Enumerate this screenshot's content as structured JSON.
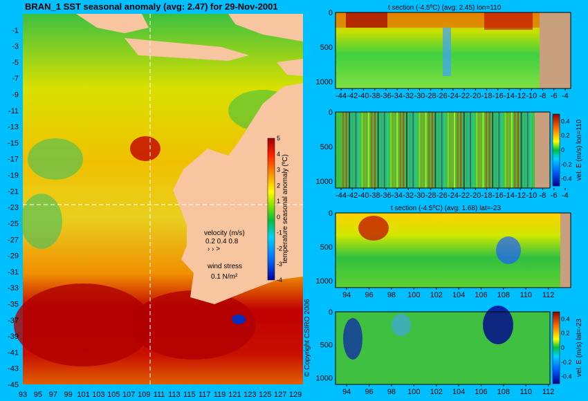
{
  "main_title": "BRAN_1 SST seasonal anomaly (avg: 2.47) for 29-Nov-2001",
  "copyright": "© Copyright CSIRO 2006",
  "colors": {
    "background": "#00bfff",
    "land": "#f7c59f",
    "seafloor": "#c8a07d",
    "grid_line": "#ffffff",
    "vector": "#ff00ff"
  },
  "chart_data": [
    {
      "type": "heatmap",
      "name": "sst-map",
      "title": "BRAN_1 SST seasonal anomaly (avg: 2.47) for 29-Nov-2001",
      "x_ticks": [
        "93",
        "95",
        "97",
        "99",
        "101",
        "103",
        "105",
        "107",
        "109",
        "111",
        "113",
        "115",
        "117",
        "119",
        "121",
        "123",
        "125",
        "127",
        "129"
      ],
      "y_ticks": [
        "-1",
        "-3",
        "-5",
        "-7",
        "-9",
        "-11",
        "-13",
        "-15",
        "-17",
        "-19",
        "-21",
        "-23",
        "-25",
        "-27",
        "-29",
        "-31",
        "-33",
        "-35",
        "-37",
        "-39",
        "-41",
        "-43",
        "-45"
      ],
      "xlim": [
        93,
        130
      ],
      "ylim": [
        -45,
        1
      ],
      "section_lines": {
        "lon": 110,
        "lat": -23
      },
      "colorbar": {
        "label": "temperature seasonal anomaly (ºC)",
        "ticks": [
          "5",
          "4",
          "3",
          "2",
          "1",
          "0",
          "-1",
          "-2",
          "-3",
          "-4"
        ],
        "range": [
          -4,
          5
        ]
      },
      "velocity_legend": {
        "label": "velocity (m/s)",
        "values": "0.2 0.4 0.8"
      },
      "wind_legend": {
        "label": "wind stress",
        "value": "0.1 N/m²"
      }
    },
    {
      "type": "heatmap",
      "name": "t-section-lon",
      "title": "t section (-4.5ºC) (avg: 2.45) lon=110",
      "x_ticks": [
        "-44",
        "-42",
        "-40",
        "-38",
        "-36",
        "-34",
        "-32",
        "-30",
        "-28",
        "-26",
        "-24",
        "-22",
        "-20",
        "-18",
        "-16",
        "-14",
        "-12",
        "-10",
        "-8",
        "-6",
        "-4"
      ],
      "y_ticks": [
        "0",
        "500",
        "1000"
      ],
      "xlim": [
        -45,
        -3
      ],
      "ylim": [
        1100,
        0
      ]
    },
    {
      "type": "heatmap",
      "name": "vel-section-lon",
      "title": "",
      "x_ticks": [
        "-44",
        "-42",
        "-40",
        "-38",
        "-36",
        "-34",
        "-32",
        "-30",
        "-28",
        "-26",
        "-24",
        "-22",
        "-20",
        "-18",
        "-16",
        "-14",
        "-12",
        "-10",
        "-8",
        "-6",
        "-4"
      ],
      "y_ticks": [
        "0",
        "500",
        "1000"
      ],
      "xlim": [
        -45,
        -3
      ],
      "ylim": [
        1100,
        0
      ],
      "colorbar": {
        "label": "vel. E (m/s) lon=110",
        "ticks": [
          "0.4",
          "0.2",
          "0",
          "-0.2",
          "-0.4"
        ],
        "range": [
          -0.5,
          0.5
        ]
      }
    },
    {
      "type": "heatmap",
      "name": "t-section-lat",
      "title": "t section (-4.5ºC) (avg: 1.68) lat=-23",
      "x_ticks": [
        "94",
        "96",
        "98",
        "100",
        "102",
        "104",
        "106",
        "108",
        "110",
        "112"
      ],
      "y_ticks": [
        "0",
        "500",
        "1000"
      ],
      "xlim": [
        93,
        114
      ],
      "ylim": [
        1100,
        0
      ]
    },
    {
      "type": "heatmap",
      "name": "vel-section-lat",
      "title": "",
      "x_ticks": [
        "94",
        "96",
        "98",
        "100",
        "102",
        "104",
        "106",
        "108",
        "110",
        "112"
      ],
      "y_ticks": [
        "0",
        "500",
        "1000"
      ],
      "xlim": [
        93,
        114
      ],
      "ylim": [
        1100,
        0
      ],
      "colorbar": {
        "label": "vel. E (m/s) lat=-23",
        "ticks": [
          "0.4",
          "0.2",
          "0",
          "-0.2",
          "-0.4"
        ],
        "range": [
          -0.5,
          0.5
        ]
      }
    }
  ]
}
